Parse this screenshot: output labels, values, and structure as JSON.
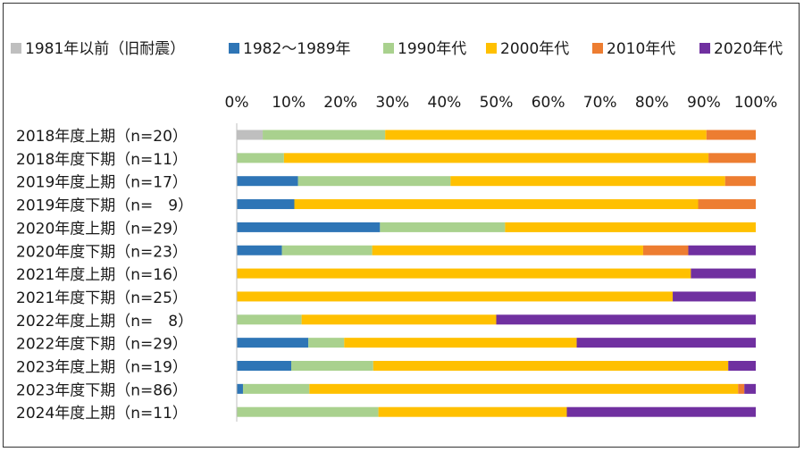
{
  "chart_data": {
    "type": "bar",
    "orientation": "horizontal",
    "stacked": "percent",
    "categories": [
      "2018年度上期（n=20）",
      "2018年度下期（n=11）",
      "2019年度上期（n=17）",
      "2019年度下期（n=　9）",
      "2020年度上期（n=29）",
      "2020年度下期（n=23）",
      "2021年度上期（n=16）",
      "2021年度下期（n=25）",
      "2022年度上期（n=　8）",
      "2022年度下期（n=29）",
      "2023年度上期（n=19）",
      "2023年度下期（n=86）",
      "2024年度上期（n=11）"
    ],
    "series": [
      {
        "name": "1981年以前（旧耐震）",
        "color": "#bfbfbf",
        "values": [
          5,
          0,
          0,
          0,
          0,
          0,
          0,
          0,
          0,
          0,
          0,
          0,
          0
        ]
      },
      {
        "name": "1982～1989年",
        "color": "#2e75b6",
        "values": [
          0,
          0,
          11.8,
          11.1,
          27.6,
          8.7,
          0,
          0,
          0,
          13.8,
          10.5,
          1.2,
          0
        ]
      },
      {
        "name": "1990年代",
        "color": "#a9d18e",
        "values": [
          23.6,
          9.1,
          29.4,
          0,
          24.1,
          17.4,
          0,
          0,
          12.5,
          6.9,
          15.8,
          12.8,
          27.3
        ]
      },
      {
        "name": "2000年代",
        "color": "#ffc000",
        "values": [
          61.9,
          81.8,
          52.9,
          77.8,
          48.3,
          52.2,
          87.5,
          84,
          37.5,
          44.8,
          68.4,
          82.6,
          36.3
        ]
      },
      {
        "name": "2010年代",
        "color": "#ed7d31",
        "values": [
          9.5,
          9.1,
          5.9,
          11.1,
          0,
          8.7,
          0,
          0,
          0,
          0,
          0,
          1.2,
          0
        ]
      },
      {
        "name": "2020年代",
        "color": "#7030a0",
        "values": [
          0,
          0,
          0,
          0,
          0,
          13,
          12.5,
          16,
          50,
          34.5,
          5.3,
          2.2,
          36.4
        ]
      }
    ],
    "x_ticks": [
      "0%",
      "10%",
      "20%",
      "30%",
      "40%",
      "50%",
      "60%",
      "70%",
      "80%",
      "90%",
      "100%"
    ],
    "xlim": [
      0,
      100
    ],
    "grid": false,
    "legend_position": "top"
  }
}
